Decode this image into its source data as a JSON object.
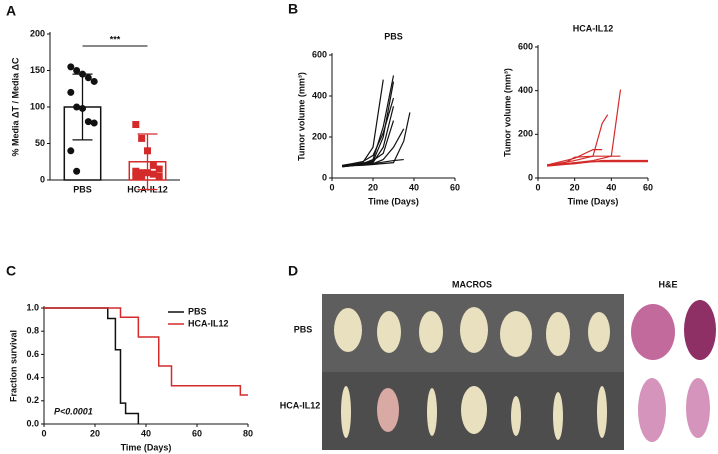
{
  "chart_data": [
    {
      "type": "bar",
      "panel": "A",
      "ylabel": "% Media ΔT / Media ΔC",
      "categories": [
        "PBS",
        "HCA-IL12"
      ],
      "values": [
        100,
        25
      ],
      "errors": [
        45,
        38
      ],
      "colors": [
        "#111111",
        "#d42a2a"
      ],
      "points": [
        [
          155,
          150,
          145,
          140,
          135,
          120,
          100,
          98,
          80,
          78,
          40,
          12
        ],
        [
          76,
          57,
          40,
          20,
          15,
          12,
          10,
          10,
          8,
          5,
          5,
          5
        ]
      ],
      "annotation": "***",
      "ylim": [
        0,
        200
      ],
      "yticks": [
        0,
        50,
        100,
        150,
        200
      ]
    },
    {
      "type": "line",
      "panel": "B",
      "title": "PBS",
      "xlabel": "Time (Days)",
      "ylabel": "Tumor volume (mm³)",
      "xlim": [
        0,
        60
      ],
      "xticks": [
        0,
        20,
        40,
        60
      ],
      "ylim": [
        0,
        600
      ],
      "yticks": [
        0,
        200,
        400,
        600
      ],
      "series": [
        {
          "color": "#111111",
          "x": [
            5,
            10,
            15,
            20,
            25
          ],
          "values": [
            60,
            65,
            75,
            150,
            480
          ]
        },
        {
          "color": "#111111",
          "x": [
            5,
            10,
            15,
            20,
            25,
            30
          ],
          "values": [
            55,
            60,
            70,
            90,
            250,
            500
          ]
        },
        {
          "color": "#111111",
          "x": [
            5,
            10,
            15,
            20,
            25,
            30
          ],
          "values": [
            60,
            65,
            70,
            80,
            200,
            470
          ]
        },
        {
          "color": "#111111",
          "x": [
            5,
            10,
            15,
            20,
            25,
            30
          ],
          "values": [
            62,
            70,
            80,
            110,
            220,
            390
          ]
        },
        {
          "color": "#111111",
          "x": [
            5,
            10,
            15,
            20,
            25,
            30
          ],
          "values": [
            58,
            62,
            68,
            75,
            150,
            350
          ]
        },
        {
          "color": "#111111",
          "x": [
            5,
            10,
            15,
            20,
            25,
            30
          ],
          "values": [
            60,
            66,
            72,
            85,
            120,
            280
          ]
        },
        {
          "color": "#111111",
          "x": [
            5,
            10,
            15,
            20,
            25,
            30,
            35
          ],
          "values": [
            55,
            60,
            65,
            70,
            90,
            150,
            240
          ]
        },
        {
          "color": "#111111",
          "x": [
            5,
            10,
            15,
            20,
            30,
            35,
            38
          ],
          "values": [
            57,
            60,
            62,
            66,
            75,
            180,
            320
          ]
        },
        {
          "color": "#111111",
          "x": [
            5,
            10,
            20,
            30,
            35
          ],
          "values": [
            60,
            62,
            70,
            85,
            90
          ]
        }
      ]
    },
    {
      "type": "line",
      "title": "HCA-IL12",
      "xlabel": "Time (Days)",
      "ylabel": "Tumor volume (mm³)",
      "xlim": [
        0,
        60
      ],
      "xticks": [
        0,
        20,
        40,
        60
      ],
      "ylim": [
        0,
        600
      ],
      "yticks": [
        0,
        200,
        400,
        600
      ],
      "series": [
        {
          "color": "#d42a2a",
          "x": [
            5,
            10,
            15,
            20,
            25,
            30,
            35,
            40,
            45
          ],
          "values": [
            55,
            58,
            62,
            65,
            70,
            75,
            80,
            80,
            80
          ]
        },
        {
          "color": "#d42a2a",
          "x": [
            5,
            10,
            20,
            30,
            40,
            60
          ],
          "values": [
            60,
            62,
            70,
            75,
            80,
            80
          ]
        },
        {
          "color": "#d42a2a",
          "x": [
            5,
            10,
            20,
            30,
            35,
            38
          ],
          "values": [
            60,
            65,
            80,
            100,
            250,
            290
          ]
        },
        {
          "color": "#d42a2a",
          "x": [
            5,
            20,
            30,
            40,
            45
          ],
          "values": [
            55,
            70,
            80,
            100,
            405
          ]
        },
        {
          "color": "#d42a2a",
          "x": [
            5,
            10,
            20,
            30,
            40,
            60
          ],
          "values": [
            58,
            60,
            70,
            75,
            75,
            75
          ]
        },
        {
          "color": "#d42a2a",
          "x": [
            5,
            15,
            20,
            30,
            45
          ],
          "values": [
            60,
            70,
            95,
            100,
            100
          ]
        },
        {
          "color": "#d42a2a",
          "x": [
            5,
            20,
            30,
            35
          ],
          "values": [
            60,
            90,
            130,
            130
          ]
        }
      ]
    },
    {
      "type": "step",
      "panel": "C",
      "xlabel": "Time (Days)",
      "ylabel": "Fraction survival",
      "annotation": "P<0.0001",
      "legend": "upper right",
      "xlim": [
        0,
        80
      ],
      "xticks": [
        0,
        20,
        40,
        60,
        80
      ],
      "ylim": [
        0,
        1
      ],
      "yticks": [
        {
          "value": 0,
          "label": "0.0"
        },
        0.2,
        0.4,
        0.6,
        0.8,
        {
          "value": 1,
          "label": "1.0"
        }
      ],
      "series": [
        {
          "name": "PBS",
          "color": "#111111",
          "x": [
            0,
            25,
            28,
            30,
            32,
            37
          ],
          "values": [
            1,
            0.91,
            0.64,
            0.18,
            0.09,
            0
          ]
        },
        {
          "name": "HCA-IL12",
          "color": "#d42a2a",
          "x": [
            0,
            30,
            37,
            45,
            50,
            77,
            80
          ],
          "values": [
            1,
            0.92,
            0.75,
            0.5,
            0.33,
            0.25,
            0.25
          ]
        }
      ]
    }
  ],
  "figure_d": {
    "panel": "D",
    "title": "MACROS",
    "subtitle": "H&E",
    "rows": [
      "PBS",
      "HCA-IL12"
    ]
  }
}
